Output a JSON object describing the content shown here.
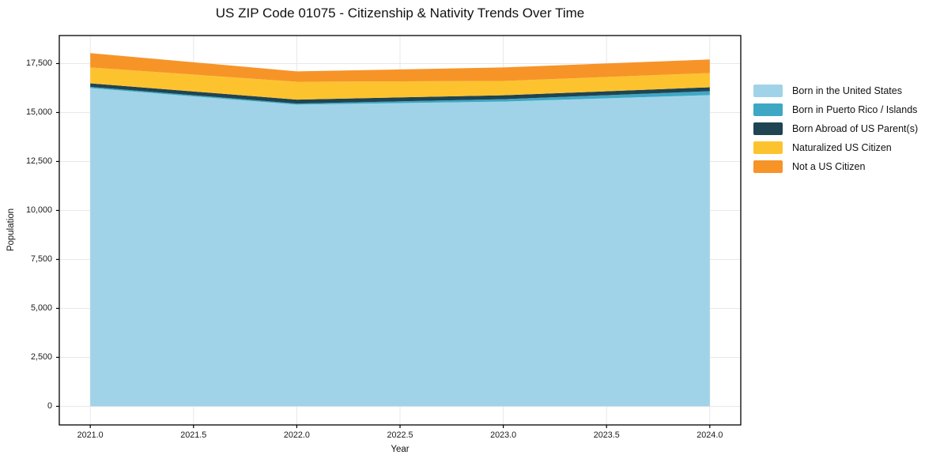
{
  "chart_data": {
    "type": "area",
    "stacked": true,
    "title": "US ZIP Code 01075 - Citizenship & Nativity Trends Over Time",
    "xlabel": "Year",
    "ylabel": "Population",
    "x": [
      2021,
      2022,
      2023,
      2024
    ],
    "series": [
      {
        "name": "Born in the United States",
        "color": "#A0D3E8",
        "values": [
          16250,
          15400,
          15560,
          15890
        ]
      },
      {
        "name": "Born in Puerto Rico / Islands",
        "color": "#3EA8C4",
        "values": [
          60,
          60,
          120,
          200
        ]
      },
      {
        "name": "Born Abroad of US Parent(s)",
        "color": "#1F4452",
        "values": [
          180,
          200,
          200,
          200
        ]
      },
      {
        "name": "Naturalized US Citizen",
        "color": "#FDC32F",
        "values": [
          810,
          910,
          730,
          730
        ]
      },
      {
        "name": "Not a US Citizen",
        "color": "#F79428",
        "values": [
          730,
          530,
          690,
          690
        ]
      }
    ],
    "totals": [
      18030,
      17100,
      17300,
      17710
    ],
    "xticks": [
      2021.0,
      2021.5,
      2022.0,
      2022.5,
      2023.0,
      2023.5,
      2024.0
    ],
    "xtick_labels": [
      "2021.0",
      "2021.5",
      "2022.0",
      "2022.5",
      "2023.0",
      "2023.5",
      "2024.0"
    ],
    "yticks": [
      0,
      2500,
      5000,
      7500,
      10000,
      12500,
      15000,
      17500
    ],
    "ytick_labels": [
      "0",
      "2,500",
      "5,000",
      "7,500",
      "10,000",
      "12,500",
      "15,000",
      "17,500"
    ],
    "xlim": [
      2020.85,
      2024.15
    ],
    "ylim": [
      -950,
      18930
    ],
    "grid": true,
    "grid_color": "#e8e8e8",
    "spine_color": "#000000",
    "background_color": "#ffffff",
    "legend_position": "outside-right"
  }
}
